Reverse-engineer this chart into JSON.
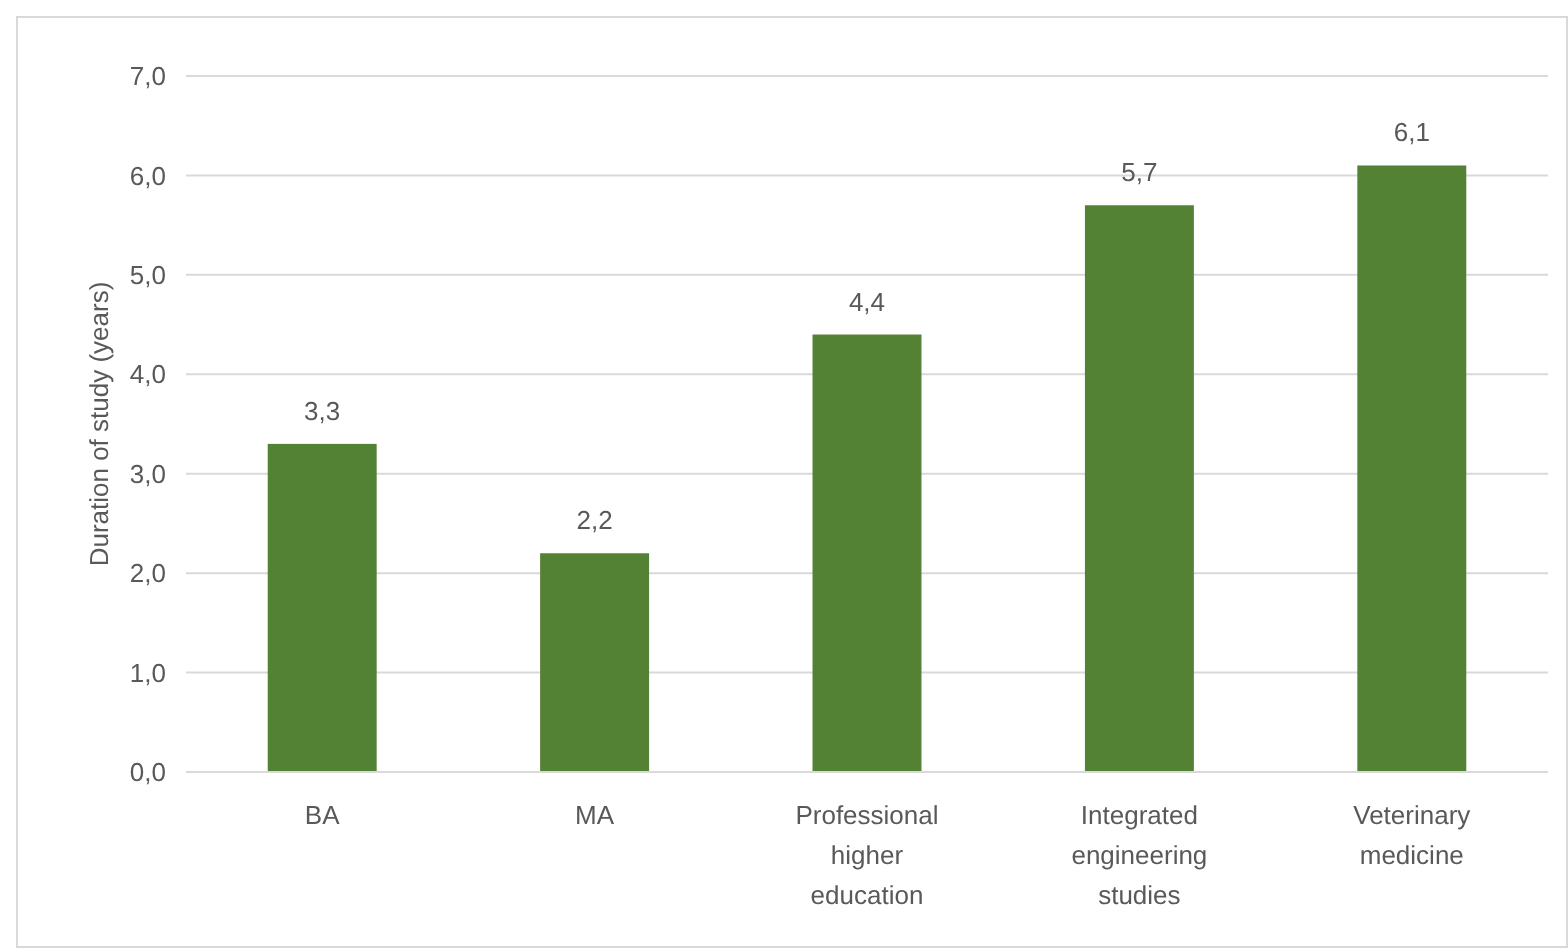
{
  "chart_data": {
    "type": "bar",
    "ylabel": "Duration of study (years)",
    "categories": [
      "BA",
      "MA",
      "Professional higher education",
      "Integrated engineering studies",
      "Veterinary medicine"
    ],
    "values": [
      3.3,
      2.2,
      4.4,
      5.7,
      6.1
    ],
    "value_labels": [
      "3,3",
      "2,2",
      "4,4",
      "5,7",
      "6,1"
    ],
    "color": "#548235",
    "ylim": [
      0,
      7
    ],
    "yticks": [
      {
        "value": 0,
        "label": "0,0"
      },
      {
        "value": 1,
        "label": "1,0"
      },
      {
        "value": 2,
        "label": "2,0"
      },
      {
        "value": 3,
        "label": "3,0"
      },
      {
        "value": 4,
        "label": "4,0"
      },
      {
        "value": 5,
        "label": "5,0"
      },
      {
        "value": 6,
        "label": "6,0"
      },
      {
        "value": 7,
        "label": "7,0"
      }
    ],
    "grid": "y"
  }
}
